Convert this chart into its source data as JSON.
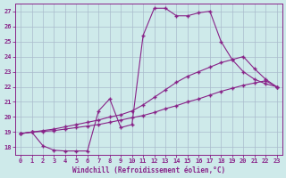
{
  "xlabel": "Windchill (Refroidissement éolien,°C)",
  "background_color": "#ceeaea",
  "grid_color": "#aabbcc",
  "line_color": "#882288",
  "xlim": [
    -0.5,
    23.5
  ],
  "ylim": [
    17.5,
    27.5
  ],
  "yticks": [
    18,
    19,
    20,
    21,
    22,
    23,
    24,
    25,
    26,
    27
  ],
  "xticks": [
    0,
    1,
    2,
    3,
    4,
    5,
    6,
    7,
    8,
    9,
    10,
    11,
    12,
    13,
    14,
    15,
    16,
    17,
    18,
    19,
    20,
    21,
    22,
    23
  ],
  "line1_x": [
    0,
    1,
    2,
    3,
    4,
    5,
    6,
    7,
    8,
    9,
    10,
    11,
    12,
    13,
    14,
    15,
    16,
    17,
    18,
    19,
    20,
    21,
    22,
    23
  ],
  "line1_y": [
    18.9,
    19.0,
    18.1,
    17.8,
    17.75,
    17.75,
    17.75,
    20.4,
    21.2,
    19.3,
    19.5,
    25.4,
    27.2,
    27.2,
    26.7,
    26.7,
    26.9,
    27.0,
    25.0,
    23.8,
    23.0,
    22.5,
    22.2,
    22.0
  ],
  "line2_x": [
    0,
    1,
    2,
    3,
    4,
    5,
    6,
    7,
    8,
    9,
    10,
    11,
    12,
    13,
    14,
    15,
    16,
    17,
    18,
    19,
    20,
    21,
    22,
    23
  ],
  "line2_y": [
    18.9,
    19.0,
    19.1,
    19.2,
    19.35,
    19.5,
    19.65,
    19.8,
    20.0,
    20.15,
    20.4,
    20.8,
    21.3,
    21.8,
    22.3,
    22.7,
    23.0,
    23.3,
    23.6,
    23.8,
    24.0,
    23.2,
    22.5,
    22.0
  ],
  "line3_x": [
    0,
    1,
    2,
    3,
    4,
    5,
    6,
    7,
    8,
    9,
    10,
    11,
    12,
    13,
    14,
    15,
    16,
    17,
    18,
    19,
    20,
    21,
    22,
    23
  ],
  "line3_y": [
    18.9,
    19.0,
    19.05,
    19.1,
    19.2,
    19.3,
    19.4,
    19.5,
    19.65,
    19.8,
    19.95,
    20.1,
    20.3,
    20.55,
    20.75,
    21.0,
    21.2,
    21.45,
    21.7,
    21.9,
    22.1,
    22.25,
    22.4,
    22.0
  ]
}
